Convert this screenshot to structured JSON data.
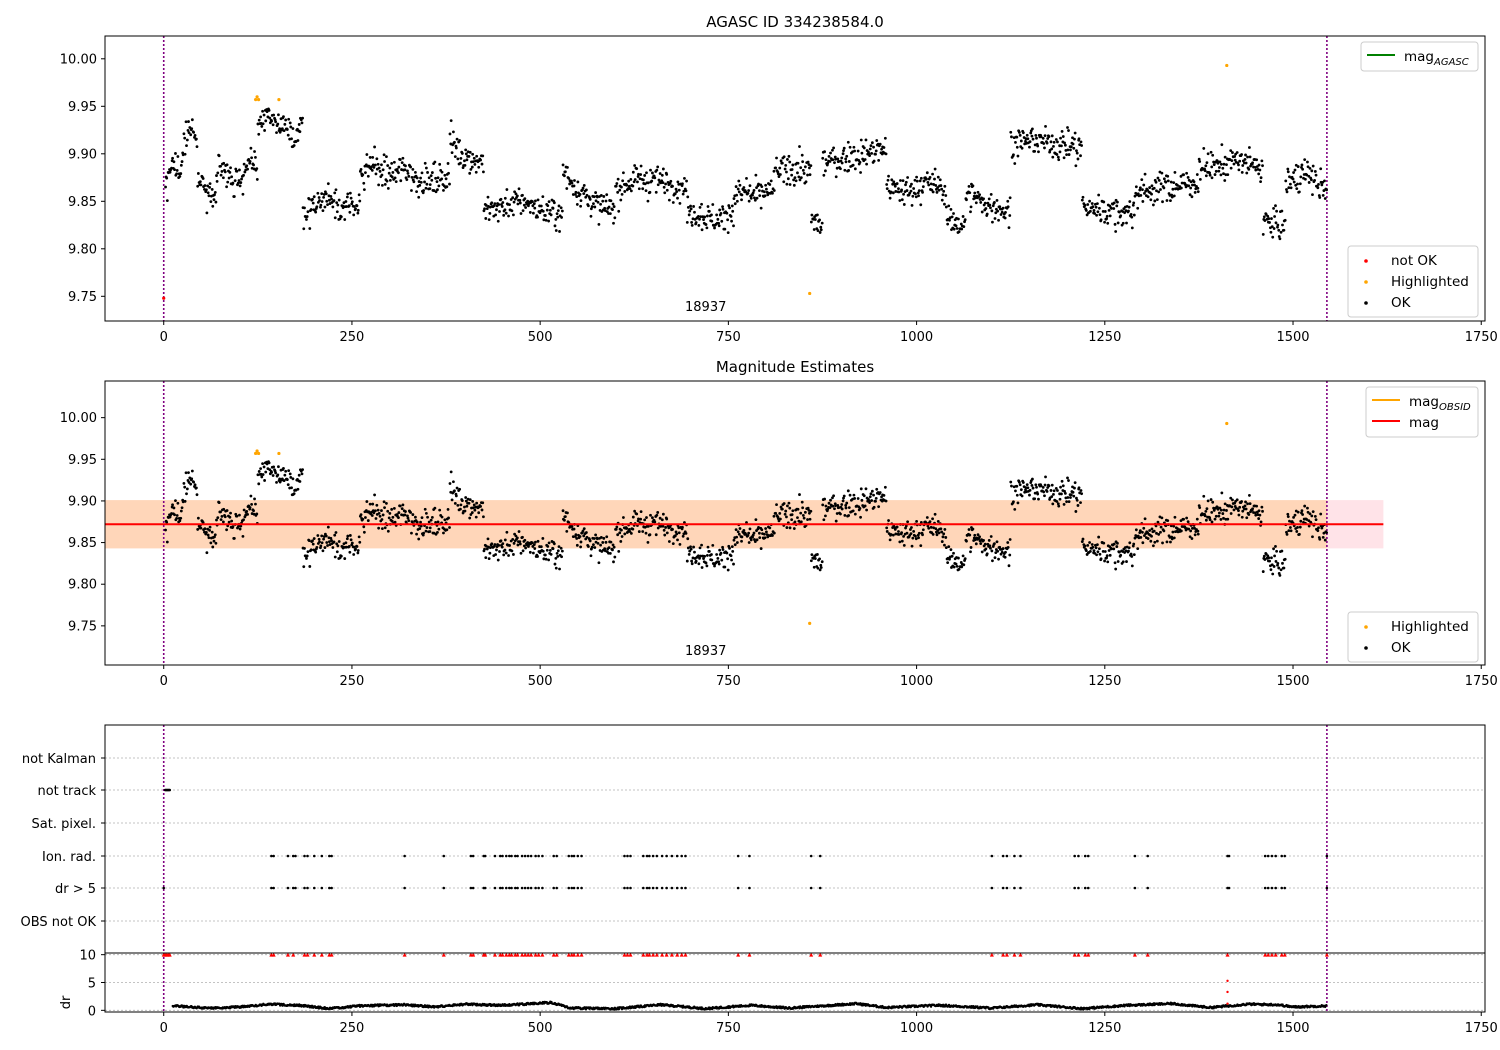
{
  "chart_data": [
    {
      "type": "scatter",
      "title": "AGASC ID 334238584.0",
      "xlabel": "",
      "ylabel": "",
      "xlim": [
        -78,
        1755
      ],
      "ylim": [
        9.724,
        10.024
      ],
      "xticks": [
        0,
        250,
        500,
        750,
        1000,
        1250,
        1500,
        1750
      ],
      "yticks": [
        9.75,
        9.8,
        9.85,
        9.9,
        9.95,
        10.0
      ],
      "ytick_labels": [
        "9.75",
        "9.80",
        "9.85",
        "9.90",
        "9.95",
        "10.00"
      ],
      "vlines": [
        0,
        1545
      ],
      "vline_color": "#800080",
      "annotation": {
        "text": "18937",
        "x": 773
      },
      "legend_top": {
        "position": "top-right",
        "entries": [
          {
            "label": "mag",
            "sub": "AGASC",
            "color": "#008000"
          }
        ]
      },
      "legend_bottom": {
        "position": "bottom-right",
        "entries": [
          {
            "label": "not OK",
            "color": "#ff0000"
          },
          {
            "label": "Highlighted",
            "color": "#ffa500"
          },
          {
            "label": "OK",
            "color": "#000000"
          }
        ]
      },
      "series": [
        {
          "name": "OK",
          "color": "#000000",
          "segments": [
            {
              "x0": 2,
              "x1": 30,
              "ys": [
                9.87,
                9.89,
                9.88,
                9.92
              ]
            },
            {
              "x0": 30,
              "x1": 45,
              "ys": [
                9.92,
                9.915
              ]
            },
            {
              "x0": 45,
              "x1": 70,
              "ys": [
                9.88,
                9.86,
                9.855
              ]
            },
            {
              "x0": 70,
              "x1": 125,
              "ys": [
                9.88,
                9.89,
                9.87,
                9.875,
                9.89,
                9.88
              ]
            },
            {
              "x0": 125,
              "x1": 185,
              "ys": [
                9.93,
                9.94,
                9.93,
                9.925,
                9.92,
                9.93
              ]
            },
            {
              "x0": 185,
              "x1": 260,
              "ys": [
                9.84,
                9.85,
                9.855,
                9.84,
                9.85
              ]
            },
            {
              "x0": 260,
              "x1": 340,
              "ys": [
                9.87,
                9.89,
                9.875,
                9.885,
                9.87
              ]
            },
            {
              "x0": 340,
              "x1": 380,
              "ys": [
                9.875,
                9.87,
                9.88
              ]
            },
            {
              "x0": 380,
              "x1": 425,
              "ys": [
                9.915,
                9.9,
                9.895,
                9.89
              ]
            },
            {
              "x0": 425,
              "x1": 530,
              "ys": [
                9.84,
                9.845,
                9.85,
                9.84,
                9.835
              ]
            },
            {
              "x0": 530,
              "x1": 600,
              "ys": [
                9.88,
                9.86,
                9.845,
                9.84
              ]
            },
            {
              "x0": 600,
              "x1": 695,
              "ys": [
                9.86,
                9.875,
                9.87,
                9.865
              ]
            },
            {
              "x0": 695,
              "x1": 760,
              "ys": [
                9.84,
                9.835,
                9.83,
                9.845
              ]
            },
            {
              "x0": 760,
              "x1": 810,
              "ys": [
                9.86,
                9.855,
                9.86
              ]
            },
            {
              "x0": 810,
              "x1": 860,
              "ys": [
                9.88,
                9.885,
                9.88
              ]
            },
            {
              "x0": 860,
              "x1": 875,
              "ys": [
                9.83,
                9.825
              ]
            },
            {
              "x0": 875,
              "x1": 960,
              "ys": [
                9.89,
                9.895,
                9.9,
                9.905
              ]
            },
            {
              "x0": 960,
              "x1": 1040,
              "ys": [
                9.865,
                9.86,
                9.87,
                9.86
              ]
            },
            {
              "x0": 1040,
              "x1": 1065,
              "ys": [
                9.83,
                9.825
              ]
            },
            {
              "x0": 1065,
              "x1": 1125,
              "ys": [
                9.86,
                9.845,
                9.84
              ]
            },
            {
              "x0": 1125,
              "x1": 1220,
              "ys": [
                9.91,
                9.915,
                9.91,
                9.905
              ]
            },
            {
              "x0": 1220,
              "x1": 1290,
              "ys": [
                9.845,
                9.84,
                9.835
              ]
            },
            {
              "x0": 1290,
              "x1": 1375,
              "ys": [
                9.86,
                9.865,
                9.87
              ]
            },
            {
              "x0": 1375,
              "x1": 1415,
              "ys": [
                9.885,
                9.89
              ]
            },
            {
              "x0": 1415,
              "x1": 1460,
              "ys": [
                9.895,
                9.885
              ]
            },
            {
              "x0": 1460,
              "x1": 1490,
              "ys": [
                9.83,
                9.825
              ]
            },
            {
              "x0": 1490,
              "x1": 1545,
              "ys": [
                9.87,
                9.88,
                9.86
              ]
            }
          ]
        },
        {
          "name": "Highlighted",
          "color": "#ffa500",
          "points": [
            [
              122,
              9.957
            ],
            [
              124,
              9.96
            ],
            [
              126,
              9.957
            ],
            [
              153,
              9.957
            ],
            [
              858,
              9.753
            ],
            [
              1412,
              9.993
            ]
          ]
        },
        {
          "name": "not OK",
          "color": "#ff0000",
          "points": [
            [
              0,
              9.748
            ]
          ]
        }
      ]
    },
    {
      "type": "scatter",
      "title": "Magnitude Estimates",
      "xlabel": "",
      "ylabel": "",
      "xlim": [
        -78,
        1755
      ],
      "ylim": [
        9.703,
        10.044
      ],
      "xticks": [
        0,
        250,
        500,
        750,
        1000,
        1250,
        1500,
        1750
      ],
      "yticks": [
        9.75,
        9.8,
        9.85,
        9.9,
        9.95,
        10.0
      ],
      "ytick_labels": [
        "9.75",
        "9.80",
        "9.85",
        "9.90",
        "9.95",
        "10.00"
      ],
      "vlines": [
        0,
        1545
      ],
      "vline_color": "#800080",
      "annotation": {
        "text": "18937",
        "x": 773
      },
      "mag_line": {
        "y": 9.872,
        "color": "#ff0000",
        "x0": -78,
        "x1": 1620
      },
      "band_outer": {
        "y0": 9.843,
        "y1": 9.901,
        "x0": -78,
        "x1": 1620,
        "color": "#ffc0cb"
      },
      "band_inner": {
        "y0": 9.843,
        "y1": 9.901,
        "x0": -78,
        "x1": 1545,
        "color": "#ffa500"
      },
      "legend_top": {
        "position": "top-right",
        "entries": [
          {
            "label": "mag",
            "sub": "OBSID",
            "color": "#ffa500"
          },
          {
            "label": "mag",
            "sub": "",
            "color": "#ff0000"
          }
        ]
      },
      "legend_bottom": {
        "position": "bottom-right",
        "entries": [
          {
            "label": "Highlighted",
            "color": "#ffa500"
          },
          {
            "label": "OK",
            "color": "#000000"
          }
        ]
      },
      "series": [
        {
          "name": "OK",
          "color": "#000000",
          "use_segments_from": 0
        },
        {
          "name": "Highlighted",
          "color": "#ffa500",
          "points": [
            [
              122,
              9.957
            ],
            [
              124,
              9.96
            ],
            [
              126,
              9.957
            ],
            [
              153,
              9.957
            ],
            [
              858,
              9.753
            ],
            [
              1412,
              9.993
            ]
          ]
        }
      ]
    },
    {
      "type": "scatter",
      "title": "",
      "xlim": [
        -78,
        1755
      ],
      "categories": [
        "not Kalman",
        "not track",
        "Sat. pixel.",
        "Ion. rad.",
        "dr > 5",
        "OBS not OK"
      ],
      "vlines": [
        0,
        1545
      ],
      "vline_color": "#800080",
      "flag_points": {
        "not track": [
          2,
          3,
          4,
          5,
          6,
          7,
          8
        ],
        "Ion. rad.": [
          143,
          146,
          165,
          172,
          175,
          187,
          191,
          200,
          210,
          220,
          223,
          320,
          372,
          408,
          411,
          425,
          427,
          440,
          447,
          450,
          455,
          459,
          462,
          467,
          470,
          476,
          480,
          484,
          488,
          494,
          498,
          503,
          518,
          522,
          538,
          542,
          545,
          550,
          555,
          612,
          616,
          620,
          637,
          642,
          645,
          650,
          655,
          662,
          668,
          675,
          682,
          688,
          693,
          763,
          778,
          860,
          872,
          1100,
          1115,
          1120,
          1130,
          1138,
          1210,
          1215,
          1224,
          1228,
          1290,
          1307,
          1413,
          1415,
          1463,
          1467,
          1472,
          1477,
          1485,
          1489,
          1545
        ],
        "dr > 5": [
          0,
          143,
          146,
          165,
          172,
          175,
          187,
          191,
          200,
          210,
          220,
          223,
          320,
          372,
          408,
          411,
          425,
          427,
          440,
          447,
          450,
          455,
          459,
          462,
          467,
          470,
          476,
          480,
          484,
          488,
          494,
          498,
          503,
          518,
          522,
          538,
          542,
          545,
          550,
          555,
          612,
          616,
          620,
          637,
          642,
          645,
          650,
          655,
          662,
          668,
          675,
          682,
          688,
          693,
          763,
          778,
          860,
          872,
          1100,
          1115,
          1120,
          1130,
          1138,
          1210,
          1215,
          1224,
          1228,
          1290,
          1307,
          1413,
          1415,
          1463,
          1467,
          1472,
          1477,
          1485,
          1489,
          1545
        ]
      }
    },
    {
      "type": "scatter",
      "title": "",
      "ylabel": "dr",
      "xlim": [
        -78,
        1755
      ],
      "ylim": [
        -0.3,
        10.3
      ],
      "yticks": [
        0,
        5,
        10
      ],
      "ytick_labels": [
        "0",
        "5",
        "10"
      ],
      "xticks": [
        0,
        250,
        500,
        750,
        1000,
        1250,
        1500,
        1750
      ],
      "vlines": [
        0,
        1545
      ],
      "vline_color": "#800080",
      "red_markers_at_10": [
        0,
        2,
        4,
        6,
        8,
        143,
        146,
        165,
        172,
        187,
        191,
        200,
        210,
        220,
        223,
        320,
        372,
        408,
        411,
        425,
        427,
        440,
        447,
        450,
        455,
        459,
        462,
        467,
        470,
        476,
        480,
        484,
        488,
        494,
        498,
        503,
        518,
        522,
        538,
        542,
        545,
        550,
        555,
        612,
        616,
        620,
        637,
        642,
        645,
        650,
        655,
        662,
        668,
        675,
        682,
        688,
        693,
        763,
        778,
        860,
        872,
        1100,
        1115,
        1120,
        1130,
        1138,
        1210,
        1215,
        1224,
        1228,
        1290,
        1307,
        1413,
        1463,
        1467,
        1472,
        1477,
        1485,
        1489,
        1545
      ],
      "red_points": [
        [
          1413,
          5.3
        ],
        [
          1413,
          3.3
        ],
        [
          1413,
          1.2
        ]
      ],
      "dr_baseline": [
        [
          12,
          0.8
        ],
        [
          60,
          0.4
        ],
        [
          100,
          0.6
        ],
        [
          140,
          1.1
        ],
        [
          180,
          0.9
        ],
        [
          220,
          0.3
        ],
        [
          260,
          0.8
        ],
        [
          320,
          1.0
        ],
        [
          360,
          0.6
        ],
        [
          400,
          1.1
        ],
        [
          450,
          0.9
        ],
        [
          515,
          1.4
        ],
        [
          540,
          0.4
        ],
        [
          600,
          0.3
        ],
        [
          660,
          1.0
        ],
        [
          720,
          0.3
        ],
        [
          780,
          0.9
        ],
        [
          830,
          0.4
        ],
        [
          920,
          1.2
        ],
        [
          960,
          0.5
        ],
        [
          1030,
          0.9
        ],
        [
          1100,
          0.4
        ],
        [
          1160,
          1.0
        ],
        [
          1220,
          0.3
        ],
        [
          1280,
          0.9
        ],
        [
          1340,
          1.2
        ],
        [
          1390,
          0.5
        ],
        [
          1440,
          1.1
        ],
        [
          1480,
          1.0
        ],
        [
          1500,
          0.6
        ],
        [
          1545,
          0.8
        ]
      ]
    }
  ]
}
